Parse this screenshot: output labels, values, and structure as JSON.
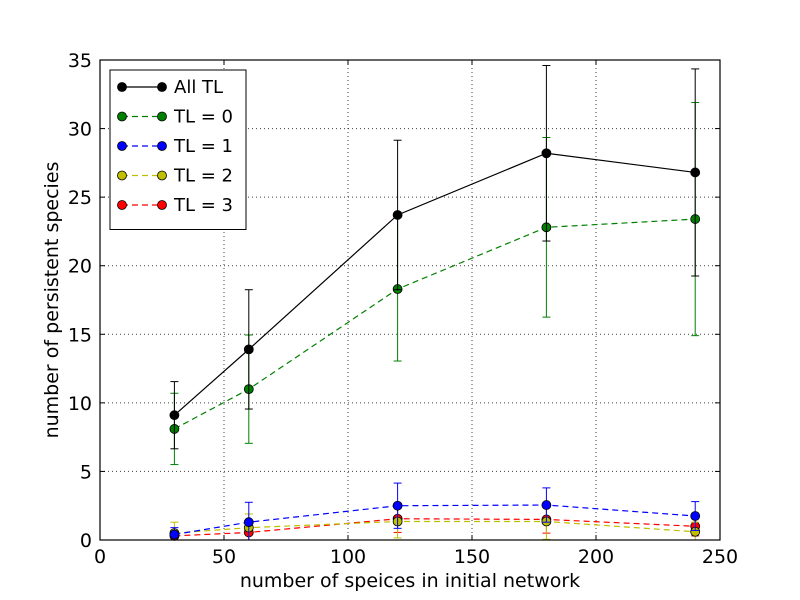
{
  "chart_data": {
    "type": "line",
    "title": "",
    "xlabel": "number of speices in initial network",
    "ylabel": "number of persistent species",
    "xlim": [
      0,
      250
    ],
    "ylim": [
      0,
      35
    ],
    "xticks": [
      0,
      50,
      100,
      150,
      200,
      250
    ],
    "yticks": [
      0,
      5,
      10,
      15,
      20,
      25,
      30,
      35
    ],
    "grid": true,
    "legend_position": "top-left",
    "x": [
      30,
      60,
      120,
      180,
      240
    ],
    "series": [
      {
        "name": "All TL",
        "color": "#000000",
        "line_style": "solid",
        "values": [
          9.1,
          13.9,
          23.7,
          28.2,
          26.8
        ],
        "error": [
          2.45,
          4.35,
          5.45,
          6.4,
          7.55
        ]
      },
      {
        "name": "TL = 0",
        "color": "#008000",
        "line_style": "dashed",
        "values": [
          8.1,
          11.0,
          18.3,
          22.8,
          23.4
        ],
        "error": [
          2.6,
          3.95,
          5.25,
          6.55,
          8.5
        ]
      },
      {
        "name": "TL = 1",
        "color": "#0000ff",
        "line_style": "dashed",
        "values": [
          0.4,
          1.3,
          2.5,
          2.55,
          1.75
        ],
        "error": [
          0.5,
          1.45,
          1.65,
          1.25,
          1.05
        ]
      },
      {
        "name": "TL = 2",
        "color": "#bfbf00",
        "line_style": "dashed",
        "values": [
          0.5,
          0.9,
          1.35,
          1.35,
          0.6
        ],
        "error": [
          0.8,
          1.0,
          1.2,
          1.3,
          0.7
        ]
      },
      {
        "name": "TL = 3",
        "color": "#ff0000",
        "line_style": "dashed",
        "values": [
          0.3,
          0.55,
          1.55,
          1.5,
          1.0
        ],
        "error": [
          0.4,
          0.6,
          1.0,
          1.0,
          0.7
        ]
      }
    ]
  }
}
